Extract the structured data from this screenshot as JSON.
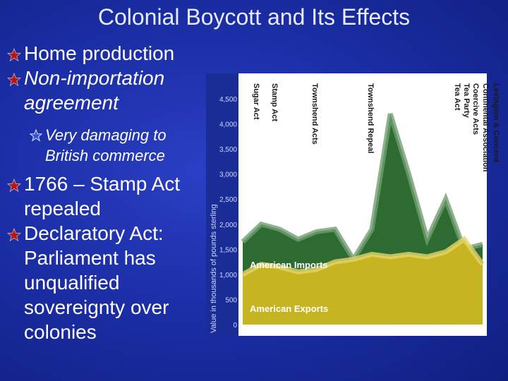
{
  "slide": {
    "title": "Colonial Boycott and Its Effects",
    "bullets": [
      {
        "text": "Home production"
      },
      {
        "text": "Non-importation agreement"
      },
      {
        "text": "Very damaging to British commerce",
        "level": 2
      },
      {
        "text": "1766 – Stamp Act repealed"
      },
      {
        "text": "Declaratory Act: Parliament has unqualified sovereignty over colonies"
      }
    ],
    "colors": {
      "background": "#1c2fa8",
      "bullet_star": "#b01818",
      "sub_star": "#8aa0ff"
    }
  },
  "chart_data": {
    "type": "area",
    "ylabel": "Value in thousands of pounds sterling",
    "yticks": [
      0,
      500,
      1000,
      1500,
      2000,
      2500,
      3000,
      3500,
      4000,
      4500
    ],
    "ytick_labels": [
      "0",
      "500",
      "1,000",
      "1,500",
      "2,000",
      "2,500",
      "3,000",
      "3,500",
      "4,000",
      "4,500"
    ],
    "ylim": [
      0,
      4500
    ],
    "x": [
      "1763",
      "1764",
      "1765",
      "1766",
      "1767",
      "1768",
      "1769",
      "1770",
      "1771",
      "1772",
      "1773",
      "1774",
      "1775",
      "1776"
    ],
    "x_labels_visible": false,
    "series": [
      {
        "name": "American Imports",
        "color": "#2e6b33",
        "values": [
          1650,
          2000,
          1900,
          1700,
          1850,
          1900,
          1300,
          1900,
          4200,
          3000,
          1700,
          2500,
          1500,
          1600
        ]
      },
      {
        "name": "American Exports",
        "color": "#c6b421",
        "values": [
          1000,
          1200,
          1150,
          1050,
          1100,
          1250,
          1300,
          1400,
          1350,
          1400,
          1350,
          1450,
          1700,
          1200
        ]
      }
    ],
    "events": [
      {
        "label": "Sugar Act",
        "x": "1764"
      },
      {
        "label": "Stamp Act",
        "x": "1765"
      },
      {
        "label": "Townshend Acts",
        "x": "1767"
      },
      {
        "label": "Townshend Repeal",
        "x": "1770"
      },
      {
        "label": "Tea Act",
        "x": "1773"
      },
      {
        "label": "Tea Party",
        "x": "1773"
      },
      {
        "label": "Coercive Acts",
        "x": "1774"
      },
      {
        "label": "Continental Association",
        "x": "1774"
      },
      {
        "label": "Lexington & Concord",
        "x": "1775"
      }
    ],
    "legend": "inside-bottom-left"
  }
}
